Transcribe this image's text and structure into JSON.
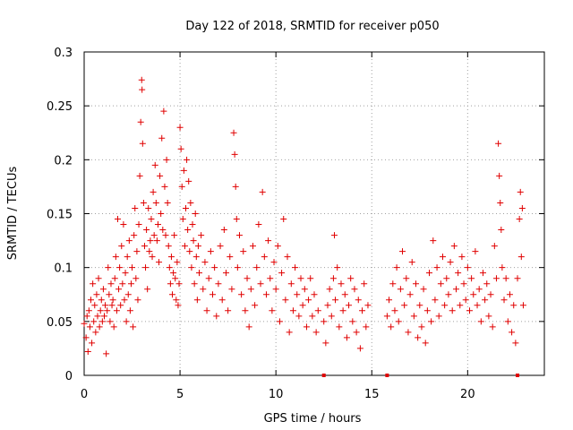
{
  "chart_data": {
    "type": "scatter",
    "title": "Day 122 of 2018, SRMTID for receiver p050",
    "xlabel": "GPS time / hours",
    "ylabel": "SRMTID / TECUs",
    "xlim": [
      0,
      24
    ],
    "ylim": [
      0,
      0.3
    ],
    "x_ticks": [
      0,
      5,
      10,
      15,
      20
    ],
    "y_ticks": [
      0,
      0.05,
      0.1,
      0.15,
      0.2,
      0.25,
      0.3
    ],
    "x_tick_labels": [
      "0",
      "5",
      "10",
      "15",
      "20"
    ],
    "y_tick_labels": [
      "0",
      "0.05",
      "0.1",
      "0.15",
      "0.2",
      "0.25",
      "0.3"
    ],
    "grid": true,
    "marker": "+",
    "color": "#e00000",
    "series": [
      {
        "name": "SRMTID",
        "points": [
          [
            0.0,
            0.048
          ],
          [
            0.1,
            0.035
          ],
          [
            0.15,
            0.055
          ],
          [
            0.2,
            0.022
          ],
          [
            0.25,
            0.06
          ],
          [
            0.3,
            0.045
          ],
          [
            0.35,
            0.07
          ],
          [
            0.4,
            0.03
          ],
          [
            0.45,
            0.085
          ],
          [
            0.5,
            0.05
          ],
          [
            0.55,
            0.065
          ],
          [
            0.6,
            0.04
          ],
          [
            0.65,
            0.075
          ],
          [
            0.7,
            0.055
          ],
          [
            0.75,
            0.09
          ],
          [
            0.8,
            0.045
          ],
          [
            0.85,
            0.06
          ],
          [
            0.9,
            0.07
          ],
          [
            0.95,
            0.05
          ],
          [
            1.0,
            0.08
          ],
          [
            1.05,
            0.055
          ],
          [
            1.1,
            0.065
          ],
          [
            1.15,
            0.02
          ],
          [
            1.2,
            0.06
          ],
          [
            1.25,
            0.1
          ],
          [
            1.3,
            0.075
          ],
          [
            1.35,
            0.05
          ],
          [
            1.4,
            0.085
          ],
          [
            1.45,
            0.065
          ],
          [
            1.5,
            0.07
          ],
          [
            1.55,
            0.045
          ],
          [
            1.6,
            0.09
          ],
          [
            1.65,
            0.11
          ],
          [
            1.7,
            0.06
          ],
          [
            1.75,
            0.145
          ],
          [
            1.8,
            0.08
          ],
          [
            1.85,
            0.1
          ],
          [
            1.9,
            0.065
          ],
          [
            1.95,
            0.12
          ],
          [
            2.0,
            0.085
          ],
          [
            2.05,
            0.14
          ],
          [
            2.1,
            0.07
          ],
          [
            2.15,
            0.095
          ],
          [
            2.2,
            0.05
          ],
          [
            2.25,
            0.11
          ],
          [
            2.3,
            0.075
          ],
          [
            2.35,
            0.125
          ],
          [
            2.4,
            0.06
          ],
          [
            2.45,
            0.085
          ],
          [
            2.5,
            0.1
          ],
          [
            2.55,
            0.045
          ],
          [
            2.6,
            0.13
          ],
          [
            2.65,
            0.155
          ],
          [
            2.7,
            0.09
          ],
          [
            2.75,
            0.115
          ],
          [
            2.8,
            0.07
          ],
          [
            2.85,
            0.14
          ],
          [
            2.9,
            0.185
          ],
          [
            2.95,
            0.235
          ],
          [
            3.0,
            0.274
          ],
          [
            3.02,
            0.265
          ],
          [
            3.05,
            0.215
          ],
          [
            3.1,
            0.16
          ],
          [
            3.15,
            0.12
          ],
          [
            3.2,
            0.1
          ],
          [
            3.25,
            0.135
          ],
          [
            3.3,
            0.08
          ],
          [
            3.35,
            0.155
          ],
          [
            3.4,
            0.115
          ],
          [
            3.45,
            0.125
          ],
          [
            3.5,
            0.145
          ],
          [
            3.55,
            0.11
          ],
          [
            3.6,
            0.17
          ],
          [
            3.65,
            0.13
          ],
          [
            3.7,
            0.195
          ],
          [
            3.75,
            0.16
          ],
          [
            3.8,
            0.125
          ],
          [
            3.85,
            0.14
          ],
          [
            3.9,
            0.105
          ],
          [
            3.95,
            0.185
          ],
          [
            4.0,
            0.15
          ],
          [
            4.05,
            0.22
          ],
          [
            4.1,
            0.135
          ],
          [
            4.15,
            0.245
          ],
          [
            4.2,
            0.175
          ],
          [
            4.25,
            0.13
          ],
          [
            4.3,
            0.2
          ],
          [
            4.35,
            0.16
          ],
          [
            4.4,
            0.12
          ],
          [
            4.45,
            0.1
          ],
          [
            4.5,
            0.085
          ],
          [
            4.55,
            0.11
          ],
          [
            4.6,
            0.075
          ],
          [
            4.65,
            0.095
          ],
          [
            4.7,
            0.13
          ],
          [
            4.75,
            0.09
          ],
          [
            4.8,
            0.07
          ],
          [
            4.85,
            0.105
          ],
          [
            4.9,
            0.065
          ],
          [
            4.95,
            0.085
          ],
          [
            5.0,
            0.23
          ],
          [
            5.05,
            0.21
          ],
          [
            5.1,
            0.175
          ],
          [
            5.15,
            0.145
          ],
          [
            5.2,
            0.19
          ],
          [
            5.25,
            0.12
          ],
          [
            5.3,
            0.155
          ],
          [
            5.35,
            0.2
          ],
          [
            5.4,
            0.135
          ],
          [
            5.45,
            0.18
          ],
          [
            5.5,
            0.115
          ],
          [
            5.55,
            0.16
          ],
          [
            5.6,
            0.1
          ],
          [
            5.65,
            0.14
          ],
          [
            5.7,
            0.125
          ],
          [
            5.75,
            0.085
          ],
          [
            5.8,
            0.15
          ],
          [
            5.85,
            0.11
          ],
          [
            5.9,
            0.07
          ],
          [
            5.95,
            0.12
          ],
          [
            6.0,
            0.095
          ],
          [
            6.1,
            0.13
          ],
          [
            6.2,
            0.08
          ],
          [
            6.3,
            0.105
          ],
          [
            6.4,
            0.06
          ],
          [
            6.5,
            0.09
          ],
          [
            6.6,
            0.115
          ],
          [
            6.7,
            0.075
          ],
          [
            6.8,
            0.1
          ],
          [
            6.9,
            0.055
          ],
          [
            7.0,
            0.085
          ],
          [
            7.1,
            0.12
          ],
          [
            7.2,
            0.07
          ],
          [
            7.3,
            0.135
          ],
          [
            7.4,
            0.095
          ],
          [
            7.5,
            0.06
          ],
          [
            7.6,
            0.11
          ],
          [
            7.7,
            0.08
          ],
          [
            7.8,
            0.225
          ],
          [
            7.85,
            0.205
          ],
          [
            7.9,
            0.175
          ],
          [
            7.95,
            0.145
          ],
          [
            8.0,
            0.1
          ],
          [
            8.1,
            0.13
          ],
          [
            8.2,
            0.075
          ],
          [
            8.3,
            0.115
          ],
          [
            8.4,
            0.06
          ],
          [
            8.5,
            0.09
          ],
          [
            8.6,
            0.045
          ],
          [
            8.7,
            0.08
          ],
          [
            8.8,
            0.12
          ],
          [
            8.9,
            0.065
          ],
          [
            9.0,
            0.1
          ],
          [
            9.1,
            0.14
          ],
          [
            9.2,
            0.085
          ],
          [
            9.3,
            0.17
          ],
          [
            9.4,
            0.11
          ],
          [
            9.5,
            0.075
          ],
          [
            9.6,
            0.125
          ],
          [
            9.7,
            0.09
          ],
          [
            9.8,
            0.06
          ],
          [
            9.9,
            0.105
          ],
          [
            10.0,
            0.08
          ],
          [
            10.1,
            0.12
          ],
          [
            10.2,
            0.05
          ],
          [
            10.3,
            0.095
          ],
          [
            10.4,
            0.145
          ],
          [
            10.5,
            0.07
          ],
          [
            10.6,
            0.11
          ],
          [
            10.7,
            0.04
          ],
          [
            10.8,
            0.085
          ],
          [
            10.9,
            0.06
          ],
          [
            11.0,
            0.1
          ],
          [
            11.1,
            0.075
          ],
          [
            11.2,
            0.055
          ],
          [
            11.3,
            0.09
          ],
          [
            11.4,
            0.065
          ],
          [
            11.5,
            0.08
          ],
          [
            11.6,
            0.045
          ],
          [
            11.7,
            0.07
          ],
          [
            11.8,
            0.09
          ],
          [
            11.9,
            0.055
          ],
          [
            12.0,
            0.075
          ],
          [
            12.1,
            0.04
          ],
          [
            12.2,
            0.06
          ],
          [
            12.5,
            0.05
          ],
          [
            12.6,
            0.03
          ],
          [
            12.7,
            0.065
          ],
          [
            12.8,
            0.08
          ],
          [
            12.9,
            0.055
          ],
          [
            13.0,
            0.09
          ],
          [
            13.05,
            0.13
          ],
          [
            13.1,
            0.07
          ],
          [
            13.2,
            0.1
          ],
          [
            13.3,
            0.045
          ],
          [
            13.4,
            0.085
          ],
          [
            13.5,
            0.06
          ],
          [
            13.6,
            0.075
          ],
          [
            13.7,
            0.035
          ],
          [
            13.8,
            0.065
          ],
          [
            13.9,
            0.09
          ],
          [
            14.0,
            0.05
          ],
          [
            14.1,
            0.08
          ],
          [
            14.2,
            0.04
          ],
          [
            14.3,
            0.07
          ],
          [
            14.4,
            0.025
          ],
          [
            14.5,
            0.06
          ],
          [
            14.6,
            0.085
          ],
          [
            14.7,
            0.045
          ],
          [
            14.8,
            0.065
          ],
          [
            15.8,
            0.055
          ],
          [
            15.9,
            0.07
          ],
          [
            16.0,
            0.045
          ],
          [
            16.1,
            0.085
          ],
          [
            16.2,
            0.06
          ],
          [
            16.3,
            0.1
          ],
          [
            16.4,
            0.05
          ],
          [
            16.5,
            0.08
          ],
          [
            16.6,
            0.115
          ],
          [
            16.7,
            0.065
          ],
          [
            16.8,
            0.09
          ],
          [
            16.9,
            0.04
          ],
          [
            17.0,
            0.075
          ],
          [
            17.1,
            0.105
          ],
          [
            17.2,
            0.055
          ],
          [
            17.3,
            0.085
          ],
          [
            17.4,
            0.035
          ],
          [
            17.5,
            0.065
          ],
          [
            17.6,
            0.045
          ],
          [
            17.7,
            0.08
          ],
          [
            17.8,
            0.03
          ],
          [
            17.9,
            0.06
          ],
          [
            18.0,
            0.095
          ],
          [
            18.1,
            0.05
          ],
          [
            18.2,
            0.125
          ],
          [
            18.3,
            0.07
          ],
          [
            18.4,
            0.1
          ],
          [
            18.5,
            0.055
          ],
          [
            18.6,
            0.085
          ],
          [
            18.7,
            0.11
          ],
          [
            18.8,
            0.065
          ],
          [
            18.9,
            0.09
          ],
          [
            19.0,
            0.075
          ],
          [
            19.1,
            0.105
          ],
          [
            19.2,
            0.06
          ],
          [
            19.3,
            0.12
          ],
          [
            19.4,
            0.08
          ],
          [
            19.5,
            0.095
          ],
          [
            19.6,
            0.065
          ],
          [
            19.7,
            0.11
          ],
          [
            19.8,
            0.085
          ],
          [
            19.9,
            0.07
          ],
          [
            20.0,
            0.1
          ],
          [
            20.1,
            0.06
          ],
          [
            20.2,
            0.09
          ],
          [
            20.3,
            0.075
          ],
          [
            20.4,
            0.115
          ],
          [
            20.5,
            0.065
          ],
          [
            20.6,
            0.08
          ],
          [
            20.7,
            0.05
          ],
          [
            20.8,
            0.095
          ],
          [
            20.9,
            0.07
          ],
          [
            21.0,
            0.085
          ],
          [
            21.1,
            0.055
          ],
          [
            21.2,
            0.075
          ],
          [
            21.3,
            0.045
          ],
          [
            21.4,
            0.12
          ],
          [
            21.5,
            0.09
          ],
          [
            21.6,
            0.215
          ],
          [
            21.65,
            0.185
          ],
          [
            21.7,
            0.16
          ],
          [
            21.75,
            0.135
          ],
          [
            21.8,
            0.1
          ],
          [
            21.9,
            0.07
          ],
          [
            22.0,
            0.09
          ],
          [
            22.1,
            0.05
          ],
          [
            22.2,
            0.075
          ],
          [
            22.3,
            0.04
          ],
          [
            22.4,
            0.065
          ],
          [
            22.5,
            0.03
          ],
          [
            22.6,
            0.09
          ],
          [
            22.7,
            0.145
          ],
          [
            22.75,
            0.17
          ],
          [
            22.8,
            0.11
          ],
          [
            22.85,
            0.155
          ],
          [
            22.9,
            0.065
          ]
        ]
      }
    ],
    "zero_markers_x": [
      12.5,
      15.8,
      22.6
    ]
  }
}
